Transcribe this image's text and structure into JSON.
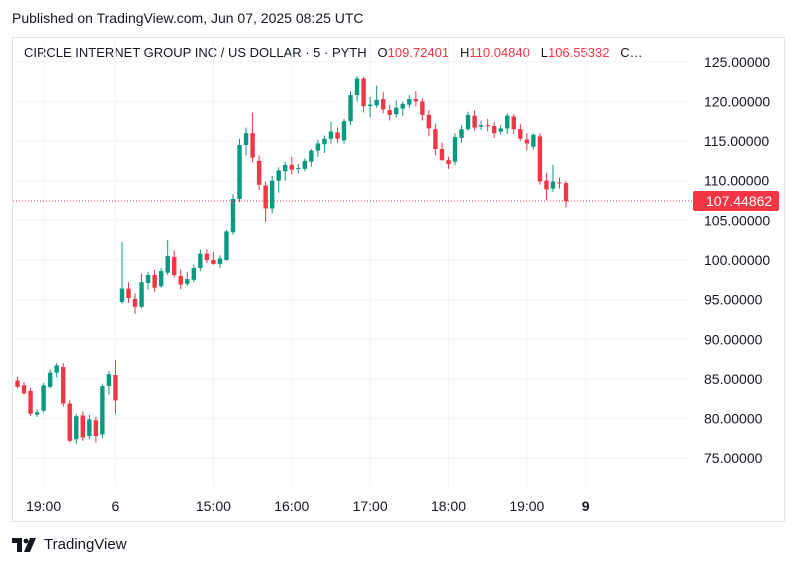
{
  "published": "Published on TradingView.com, Jun 07, 2025 08:25 UTC",
  "header": {
    "symbol": "CIRCLE INTERNET GROUP INC / US DOLLAR · 5 · PYTH",
    "o_label": "O",
    "o_value": "109.72401",
    "h_label": "H",
    "h_value": "110.04840",
    "l_label": "L",
    "l_value": "106.55332",
    "c_label": "C…"
  },
  "brand": {
    "name": "TradingView",
    "logo_icon": "tradingview-logo-icon"
  },
  "colors": {
    "up": "#089981",
    "down": "#f23645",
    "grid": "#f0f3fa",
    "text": "#131722",
    "price_line": "#f23645"
  },
  "chart_data": {
    "type": "candlestick",
    "ylim": [
      71.5,
      128.0
    ],
    "y_ticks": [
      "125.00000",
      "120.00000",
      "115.00000",
      "110.00000",
      "105.00000",
      "100.00000",
      "95.00000",
      "90.00000",
      "85.00000",
      "80.00000",
      "75.00000"
    ],
    "y_tick_values": [
      125,
      120,
      115,
      110,
      105,
      100,
      95,
      90,
      85,
      80,
      75
    ],
    "x_ticks": [
      {
        "label": "19:00",
        "index": 4,
        "bold": false
      },
      {
        "label": "6",
        "index": 15,
        "bold": false
      },
      {
        "label": "15:00",
        "index": 30,
        "bold": false
      },
      {
        "label": "16:00",
        "index": 42,
        "bold": false
      },
      {
        "label": "17:00",
        "index": 54,
        "bold": false
      },
      {
        "label": "18:00",
        "index": 66,
        "bold": false
      },
      {
        "label": "19:00",
        "index": 78,
        "bold": false
      },
      {
        "label": "9",
        "index": 87,
        "bold": true
      }
    ],
    "last_price": "107.44862",
    "last_price_value": 107.45,
    "candles": [
      [
        84.8,
        85.3,
        83.8,
        84.0
      ],
      [
        84.2,
        84.6,
        83.0,
        83.2
      ],
      [
        83.5,
        83.9,
        80.3,
        80.6
      ],
      [
        80.5,
        81.2,
        80.2,
        80.8
      ],
      [
        81.0,
        84.5,
        80.8,
        84.2
      ],
      [
        84.0,
        86.2,
        83.8,
        85.8
      ],
      [
        85.8,
        87.0,
        85.2,
        86.7
      ],
      [
        86.5,
        87.0,
        81.5,
        81.9
      ],
      [
        81.9,
        82.3,
        77.0,
        77.2
      ],
      [
        77.4,
        80.6,
        76.8,
        80.3
      ],
      [
        80.4,
        80.9,
        77.2,
        77.6
      ],
      [
        77.8,
        80.5,
        77.4,
        79.9
      ],
      [
        79.8,
        80.2,
        77.0,
        77.8
      ],
      [
        78.0,
        84.4,
        77.5,
        84.1
      ],
      [
        84.1,
        86.0,
        83.0,
        85.6
      ],
      [
        85.5,
        87.4,
        80.6,
        82.3
      ],
      [
        94.7,
        102.3,
        94.5,
        96.4
      ],
      [
        96.4,
        97.2,
        94.6,
        95.2
      ],
      [
        95.1,
        95.8,
        93.2,
        94.1
      ],
      [
        94.1,
        98.3,
        93.9,
        97.2
      ],
      [
        97.1,
        98.5,
        96.3,
        98.1
      ],
      [
        98.1,
        98.8,
        96.0,
        96.5
      ],
      [
        96.7,
        99.0,
        96.5,
        98.6
      ],
      [
        98.4,
        102.5,
        98.1,
        100.5
      ],
      [
        100.4,
        101.2,
        97.8,
        98.1
      ],
      [
        98.0,
        98.8,
        96.3,
        96.9
      ],
      [
        97.0,
        98.5,
        96.7,
        97.6
      ],
      [
        97.5,
        99.4,
        97.2,
        99.0
      ],
      [
        99.0,
        101.3,
        98.6,
        100.8
      ],
      [
        100.8,
        101.4,
        99.6,
        100.0
      ],
      [
        100.0,
        101.0,
        99.4,
        99.5
      ],
      [
        99.5,
        100.6,
        99.0,
        100.2
      ],
      [
        100.0,
        103.8,
        99.9,
        103.6
      ],
      [
        103.5,
        108.3,
        103.2,
        107.7
      ],
      [
        107.7,
        115.3,
        107.3,
        114.5
      ],
      [
        114.5,
        116.7,
        113.2,
        116.0
      ],
      [
        116.0,
        118.6,
        112.3,
        112.9
      ],
      [
        112.5,
        113.2,
        108.8,
        109.5
      ],
      [
        109.4,
        109.9,
        104.8,
        106.5
      ],
      [
        106.5,
        110.6,
        105.9,
        110.0
      ],
      [
        110.0,
        111.7,
        108.5,
        111.3
      ],
      [
        111.2,
        112.4,
        110.0,
        112.0
      ],
      [
        112.0,
        113.0,
        110.8,
        111.4
      ],
      [
        111.5,
        112.1,
        110.9,
        111.6
      ],
      [
        111.5,
        112.8,
        111.2,
        112.5
      ],
      [
        112.4,
        114.0,
        111.8,
        113.8
      ],
      [
        113.8,
        115.2,
        113.0,
        114.7
      ],
      [
        114.6,
        115.7,
        113.5,
        115.3
      ],
      [
        115.3,
        117.4,
        114.7,
        116.2
      ],
      [
        116.1,
        116.7,
        114.8,
        115.3
      ],
      [
        115.1,
        117.8,
        114.7,
        117.5
      ],
      [
        117.5,
        121.3,
        117.0,
        120.8
      ],
      [
        120.8,
        123.2,
        120.0,
        122.9
      ],
      [
        122.9,
        123.1,
        118.6,
        119.4
      ],
      [
        119.4,
        120.6,
        118.0,
        119.6
      ],
      [
        119.5,
        122.0,
        119.2,
        120.2
      ],
      [
        120.3,
        121.2,
        118.5,
        119.0
      ],
      [
        118.9,
        119.6,
        117.6,
        118.3
      ],
      [
        118.4,
        120.1,
        118.0,
        119.2
      ],
      [
        119.1,
        120.0,
        118.2,
        119.7
      ],
      [
        119.6,
        120.8,
        119.2,
        120.3
      ],
      [
        120.3,
        121.3,
        119.4,
        120.0
      ],
      [
        120.0,
        120.4,
        117.6,
        118.3
      ],
      [
        118.3,
        118.9,
        115.6,
        116.6
      ],
      [
        116.5,
        117.2,
        113.2,
        114.0
      ],
      [
        114.0,
        114.8,
        112.5,
        112.6
      ],
      [
        112.6,
        113.0,
        111.5,
        112.1
      ],
      [
        112.4,
        116.0,
        112.0,
        115.5
      ],
      [
        115.4,
        117.0,
        114.8,
        116.5
      ],
      [
        116.5,
        118.7,
        116.3,
        118.3
      ],
      [
        118.2,
        118.9,
        116.3,
        116.7
      ],
      [
        116.8,
        117.6,
        116.4,
        117.0
      ],
      [
        117.0,
        117.8,
        116.2,
        116.9
      ],
      [
        116.9,
        117.4,
        115.4,
        116.0
      ],
      [
        116.2,
        117.0,
        115.8,
        116.6
      ],
      [
        116.6,
        118.5,
        115.9,
        118.2
      ],
      [
        118.1,
        118.4,
        115.9,
        116.5
      ],
      [
        116.5,
        117.2,
        115.0,
        115.3
      ],
      [
        115.2,
        116.0,
        113.8,
        114.7
      ],
      [
        114.3,
        116.0,
        113.9,
        115.8
      ],
      [
        115.6,
        116.0,
        109.5,
        109.9
      ],
      [
        110.0,
        111.0,
        107.6,
        108.9
      ],
      [
        109.0,
        112.0,
        108.6,
        109.9
      ],
      [
        109.8,
        110.4,
        109.0,
        109.7
      ],
      [
        109.7,
        110.0,
        106.6,
        107.4
      ]
    ]
  }
}
